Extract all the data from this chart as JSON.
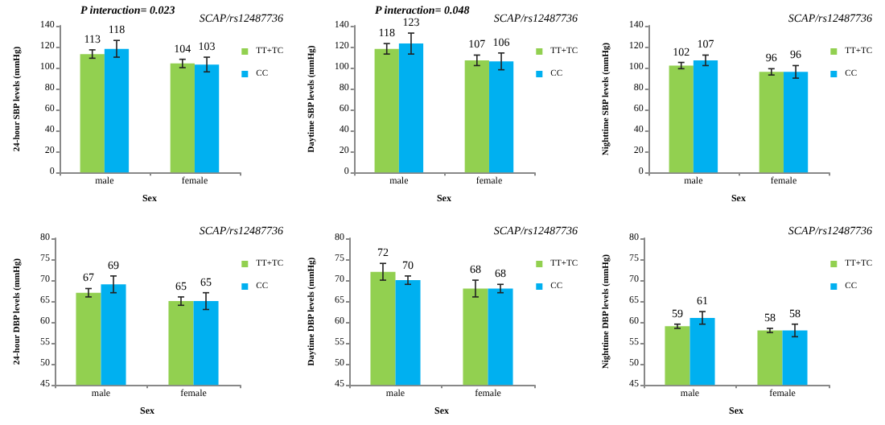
{
  "chart_data": [
    {
      "type": "bar",
      "title": "SCAP/rs12487736",
      "annotations": [
        "P interaction= 0.023"
      ],
      "categories": [
        "male",
        "female"
      ],
      "xlabel": "Sex",
      "ylabel": "24-hour SBP levels (mmHg)",
      "ylim": [
        0,
        140
      ],
      "yticks": [
        0,
        20,
        40,
        60,
        80,
        100,
        120,
        140
      ],
      "grid": false,
      "legend": "top right",
      "data_labels": true,
      "series": [
        {
          "name": "TT+TC",
          "color": "#92d050",
          "values": [
            113,
            104
          ],
          "errors": [
            4,
            4
          ]
        },
        {
          "name": "CC",
          "color": "#00b0f0",
          "values": [
            118,
            103
          ],
          "errors": [
            8,
            7
          ]
        }
      ]
    },
    {
      "type": "bar",
      "title": "SCAP/rs12487736",
      "annotations": [
        "P interaction= 0.048"
      ],
      "categories": [
        "male",
        "female"
      ],
      "xlabel": "Sex",
      "ylabel": "Daytime SBP levels (mmHg)",
      "ylim": [
        0,
        140
      ],
      "yticks": [
        0,
        20,
        40,
        60,
        80,
        100,
        120,
        140
      ],
      "grid": false,
      "legend": "top right",
      "data_labels": true,
      "series": [
        {
          "name": "TT+TC",
          "color": "#92d050",
          "values": [
            118,
            107
          ],
          "errors": [
            5,
            5
          ]
        },
        {
          "name": "CC",
          "color": "#00b0f0",
          "values": [
            123,
            106
          ],
          "errors": [
            10,
            8
          ]
        }
      ]
    },
    {
      "type": "bar",
      "title": "SCAP/rs12487736",
      "categories": [
        "male",
        "female"
      ],
      "xlabel": "Sex",
      "ylabel": "Nighttime SBP levels (mmHg)",
      "ylim": [
        0,
        140
      ],
      "yticks": [
        0,
        20,
        40,
        60,
        80,
        100,
        120,
        140
      ],
      "grid": false,
      "legend": "top right",
      "data_labels": true,
      "series": [
        {
          "name": "TT+TC",
          "color": "#92d050",
          "values": [
            102,
            96
          ],
          "errors": [
            3,
            3
          ]
        },
        {
          "name": "CC",
          "color": "#00b0f0",
          "values": [
            107,
            96
          ],
          "errors": [
            5,
            6
          ]
        }
      ]
    },
    {
      "type": "bar",
      "title": "SCAP/rs12487736",
      "categories": [
        "male",
        "female"
      ],
      "xlabel": "Sex",
      "ylabel": "24-hour DBP levels (mmHg)",
      "ylim": [
        45,
        80
      ],
      "yticks": [
        45,
        50,
        55,
        60,
        65,
        70,
        75,
        80
      ],
      "grid": false,
      "legend": "top right",
      "data_labels": true,
      "series": [
        {
          "name": "TT+TC",
          "color": "#92d050",
          "values": [
            67,
            65
          ],
          "errors": [
            1,
            1
          ]
        },
        {
          "name": "CC",
          "color": "#00b0f0",
          "values": [
            69,
            65
          ],
          "errors": [
            2,
            2
          ]
        }
      ]
    },
    {
      "type": "bar",
      "title": "SCAP/rs12487736",
      "categories": [
        "male",
        "female"
      ],
      "xlabel": "Sex",
      "ylabel": "Daytime DBP levels (mmHg)",
      "ylim": [
        45,
        80
      ],
      "yticks": [
        45,
        50,
        55,
        60,
        65,
        70,
        75,
        80
      ],
      "grid": false,
      "legend": "top right",
      "data_labels": true,
      "series": [
        {
          "name": "TT+TC",
          "color": "#92d050",
          "values": [
            72,
            68
          ],
          "errors": [
            2,
            2
          ]
        },
        {
          "name": "CC",
          "color": "#00b0f0",
          "values": [
            70,
            68
          ],
          "errors": [
            1,
            1
          ]
        }
      ]
    },
    {
      "type": "bar",
      "title": "SCAP/rs12487736",
      "categories": [
        "male",
        "female"
      ],
      "xlabel": "Sex",
      "ylabel": "Nighttime DBP levels (mmHg)",
      "ylim": [
        45,
        80
      ],
      "yticks": [
        45,
        50,
        55,
        60,
        65,
        70,
        75,
        80
      ],
      "grid": false,
      "legend": "top right",
      "data_labels": true,
      "series": [
        {
          "name": "TT+TC",
          "color": "#92d050",
          "values": [
            59,
            58
          ],
          "errors": [
            0.5,
            0.5
          ]
        },
        {
          "name": "CC",
          "color": "#00b0f0",
          "values": [
            61,
            58
          ],
          "errors": [
            1.5,
            1.5
          ]
        }
      ]
    }
  ]
}
